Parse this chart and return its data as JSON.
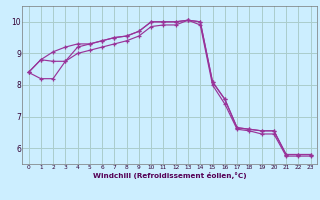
{
  "background_color": "#cceeff",
  "grid_color": "#aacccc",
  "line_color": "#993399",
  "xlabel": "Windchill (Refroidissement éolien,°C)",
  "xlim": [
    -0.5,
    23.5
  ],
  "ylim": [
    5.5,
    10.5
  ],
  "yticks": [
    6,
    7,
    8,
    9,
    10
  ],
  "xticks": [
    0,
    1,
    2,
    3,
    4,
    5,
    6,
    7,
    8,
    9,
    10,
    11,
    12,
    13,
    14,
    15,
    16,
    17,
    18,
    19,
    20,
    21,
    22,
    23
  ],
  "series1_x": [
    0,
    1,
    2,
    3,
    4,
    5,
    6,
    7,
    8,
    9,
    10,
    11,
    12,
    13,
    14,
    15,
    16,
    17,
    18,
    19,
    20,
    21,
    22,
    23
  ],
  "series1_y": [
    8.4,
    8.8,
    9.05,
    9.2,
    9.3,
    9.3,
    9.4,
    9.5,
    9.55,
    9.7,
    10.0,
    10.0,
    10.0,
    10.05,
    10.0,
    8.1,
    7.55,
    6.65,
    6.6,
    6.55,
    6.55,
    5.8,
    5.8,
    5.8
  ],
  "series2_x": [
    0,
    1,
    2,
    3,
    4,
    5,
    6,
    7,
    8,
    9,
    10,
    11,
    12,
    13,
    14,
    15,
    16,
    17,
    18,
    19,
    20,
    21,
    22,
    23
  ],
  "series2_y": [
    8.4,
    8.8,
    8.75,
    8.75,
    9.2,
    9.3,
    9.4,
    9.5,
    9.55,
    9.7,
    10.0,
    10.0,
    10.0,
    10.05,
    10.0,
    8.1,
    7.55,
    6.65,
    6.6,
    6.55,
    6.55,
    5.8,
    5.8,
    5.8
  ],
  "series3_x": [
    0,
    1,
    2,
    3,
    4,
    5,
    6,
    7,
    8,
    9,
    10,
    11,
    12,
    13,
    14,
    15,
    16,
    17,
    18,
    19,
    20,
    21,
    22,
    23
  ],
  "series3_y": [
    8.4,
    8.2,
    8.2,
    8.75,
    9.0,
    9.1,
    9.2,
    9.3,
    9.4,
    9.55,
    9.85,
    9.9,
    9.9,
    10.05,
    9.9,
    8.0,
    7.4,
    6.6,
    6.55,
    6.45,
    6.45,
    5.75,
    5.75,
    5.75
  ]
}
